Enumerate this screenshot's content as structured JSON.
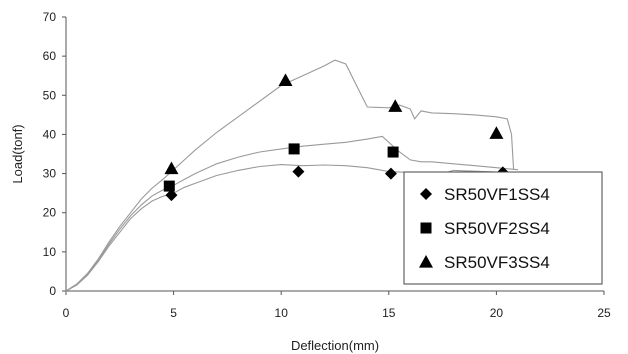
{
  "chart_data": {
    "type": "line",
    "xlabel": "Deflection(mm)",
    "ylabel": "Load(tonf)",
    "xlim": [
      0,
      25
    ],
    "ylim": [
      0,
      70
    ],
    "xticks": [
      0,
      5,
      10,
      15,
      20,
      25
    ],
    "yticks": [
      0,
      10,
      20,
      30,
      40,
      50,
      60,
      70
    ],
    "grid": false,
    "legend_position": "bottom-right",
    "series": [
      {
        "name": "SR50VF1SS4",
        "marker": "diamond",
        "curve": [
          [
            0,
            0
          ],
          [
            0.5,
            1.5
          ],
          [
            1,
            4
          ],
          [
            1.5,
            7.5
          ],
          [
            2,
            11.5
          ],
          [
            2.5,
            15
          ],
          [
            3,
            18.5
          ],
          [
            3.5,
            21
          ],
          [
            4,
            23
          ],
          [
            4.5,
            24.2
          ],
          [
            5,
            25
          ],
          [
            5.5,
            26.5
          ],
          [
            6,
            27.5
          ],
          [
            7,
            29.5
          ],
          [
            8,
            30.8
          ],
          [
            9,
            31.8
          ],
          [
            10,
            32.3
          ],
          [
            11,
            32
          ],
          [
            12,
            32.2
          ],
          [
            13,
            32
          ],
          [
            14,
            31.5
          ],
          [
            15,
            30.5
          ],
          [
            16,
            30.3
          ],
          [
            16.5,
            30.2
          ],
          [
            17,
            29
          ],
          [
            17.5,
            30
          ],
          [
            18,
            30.8
          ],
          [
            19,
            30.6
          ],
          [
            20,
            30.4
          ],
          [
            21,
            30.2
          ],
          [
            21.5,
            30
          ]
        ],
        "markers": [
          [
            4.9,
            24.5
          ],
          [
            10.8,
            30.5
          ],
          [
            15.1,
            30
          ],
          [
            20.3,
            30.3
          ]
        ]
      },
      {
        "name": "SR50VF2SS4",
        "marker": "square",
        "curve": [
          [
            0,
            0
          ],
          [
            0.5,
            1.6
          ],
          [
            1,
            4.2
          ],
          [
            1.5,
            7.8
          ],
          [
            2,
            12
          ],
          [
            2.5,
            15.8
          ],
          [
            3,
            19.2
          ],
          [
            3.5,
            22
          ],
          [
            4,
            24.3
          ],
          [
            4.5,
            25.8
          ],
          [
            5,
            27
          ],
          [
            5.5,
            28.5
          ],
          [
            6,
            30
          ],
          [
            7,
            32.5
          ],
          [
            8,
            34.2
          ],
          [
            9,
            35.5
          ],
          [
            10,
            36.3
          ],
          [
            11,
            37
          ],
          [
            12,
            37.5
          ],
          [
            13,
            38
          ],
          [
            14,
            38.8
          ],
          [
            14.7,
            39.5
          ],
          [
            15,
            38
          ],
          [
            15.5,
            35.5
          ],
          [
            16,
            33.5
          ],
          [
            16.5,
            33
          ],
          [
            17,
            33
          ],
          [
            18,
            32.5
          ],
          [
            19,
            32
          ],
          [
            20,
            31.5
          ],
          [
            21,
            31
          ]
        ],
        "markers": [
          [
            4.8,
            26.8
          ],
          [
            10.6,
            36.3
          ],
          [
            15.2,
            35.5
          ]
        ]
      },
      {
        "name": "SR50VF3SS4",
        "marker": "triangle",
        "curve": [
          [
            0,
            0
          ],
          [
            0.5,
            1.8
          ],
          [
            1,
            4.5
          ],
          [
            1.5,
            8.2
          ],
          [
            2,
            12.5
          ],
          [
            2.5,
            16.5
          ],
          [
            3,
            20
          ],
          [
            3.5,
            23.5
          ],
          [
            4,
            26.3
          ],
          [
            4.5,
            28.5
          ],
          [
            5,
            31
          ],
          [
            5.5,
            33.5
          ],
          [
            6,
            36
          ],
          [
            7,
            40.5
          ],
          [
            8,
            44.5
          ],
          [
            9,
            48.5
          ],
          [
            10,
            52.5
          ],
          [
            11,
            55
          ],
          [
            12,
            57.5
          ],
          [
            12.5,
            59
          ],
          [
            13,
            58
          ],
          [
            13.5,
            52.5
          ],
          [
            14,
            47
          ],
          [
            15,
            46.8
          ],
          [
            15.5,
            47.5
          ],
          [
            16,
            46.5
          ],
          [
            16.2,
            44
          ],
          [
            16.5,
            46
          ],
          [
            17,
            45.5
          ],
          [
            18,
            45.3
          ],
          [
            19,
            45
          ],
          [
            20,
            44.5
          ],
          [
            20.5,
            44
          ],
          [
            20.7,
            40
          ],
          [
            20.8,
            31
          ]
        ],
        "markers": [
          [
            4.9,
            31.3
          ],
          [
            10.2,
            53.8
          ],
          [
            15.3,
            47.2
          ],
          [
            20,
            40.3
          ]
        ]
      }
    ]
  }
}
